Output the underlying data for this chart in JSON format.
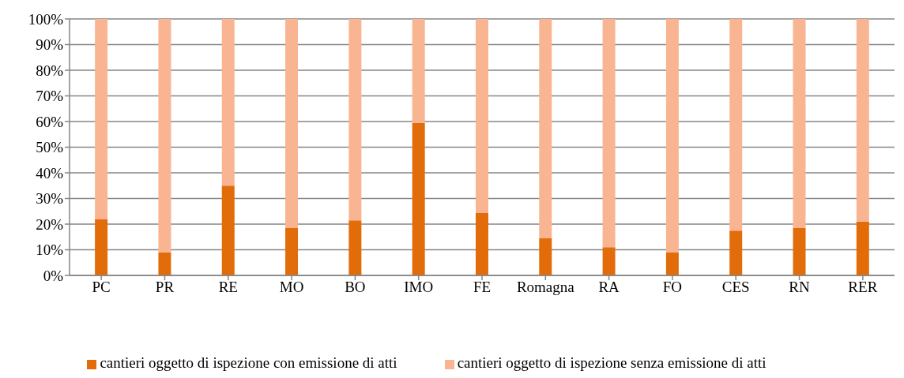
{
  "chart_data": {
    "type": "bar",
    "stacked": true,
    "categories": [
      "PC",
      "PR",
      "RE",
      "MO",
      "BO",
      "IMO",
      "FE",
      "Romagna",
      "RA",
      "FO",
      "CES",
      "RN",
      "RER"
    ],
    "series": [
      {
        "name": "cantieri oggetto di ispezione con emissione di atti",
        "color": "#e36c0a",
        "values": [
          22,
          9,
          35,
          18.5,
          21.5,
          59.5,
          24.5,
          14.5,
          11,
          9,
          17.5,
          18.5,
          21
        ]
      },
      {
        "name": "cantieri oggetto di ispezione senza emissione di atti",
        "color": "#f9b591",
        "values": [
          78,
          91,
          65,
          81.5,
          78.5,
          40.5,
          75.5,
          85.5,
          89,
          91,
          82.5,
          81.5,
          79
        ]
      }
    ],
    "ylim": [
      0,
      100
    ],
    "yticks": [
      {
        "value": 0,
        "label": "0%"
      },
      {
        "value": 10,
        "label": "10%"
      },
      {
        "value": 20,
        "label": "20%"
      },
      {
        "value": 30,
        "label": "30%"
      },
      {
        "value": 40,
        "label": "40%"
      },
      {
        "value": 50,
        "label": "50%"
      },
      {
        "value": 60,
        "label": "60%"
      },
      {
        "value": 70,
        "label": "70%"
      },
      {
        "value": 80,
        "label": "80%"
      },
      {
        "value": 90,
        "label": "90%"
      },
      {
        "value": 100,
        "label": "100%"
      }
    ],
    "grid": "y",
    "legend": "bottom"
  }
}
